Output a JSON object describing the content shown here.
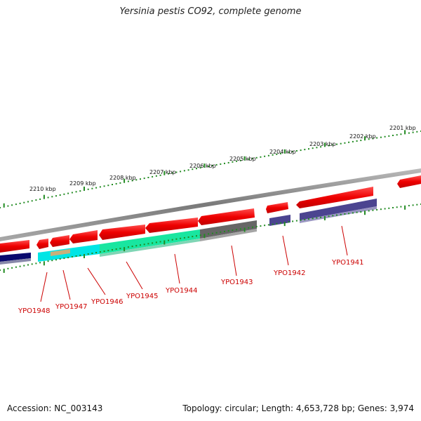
{
  "title": "Yersinia pestis CO92, complete genome",
  "footer": {
    "accession": "Accession: NC_003143",
    "summary": "Topology: circular; Length: 4,653,728 bp; Genes: 3,974"
  },
  "scale_labels": [
    "2210 kbp",
    "2209 kbp",
    "2208 kbp",
    "2207 kbp",
    "2206 kbp",
    "2205 kbp",
    "2204 kbp",
    "2203 kbp",
    "2202 kbp",
    "2201 kbp"
  ],
  "gene_labels": [
    "YPO1948",
    "YPO1947",
    "YPO1946",
    "YPO1945",
    "YPO1944",
    "YPO1943",
    "YPO1942",
    "YPO1941"
  ],
  "colors": {
    "forward_cds": "#ee0000",
    "backbone": "#808080",
    "tick": "#228b22",
    "label": "#cc0000",
    "cyan_feature": "#00e5e5",
    "green_feature": "#19e6a0",
    "gray_feature": "#666666",
    "purple_feature": "#4b4490",
    "navy_feature": "#0a0a6e",
    "tan_feature": "#c8b07a"
  }
}
